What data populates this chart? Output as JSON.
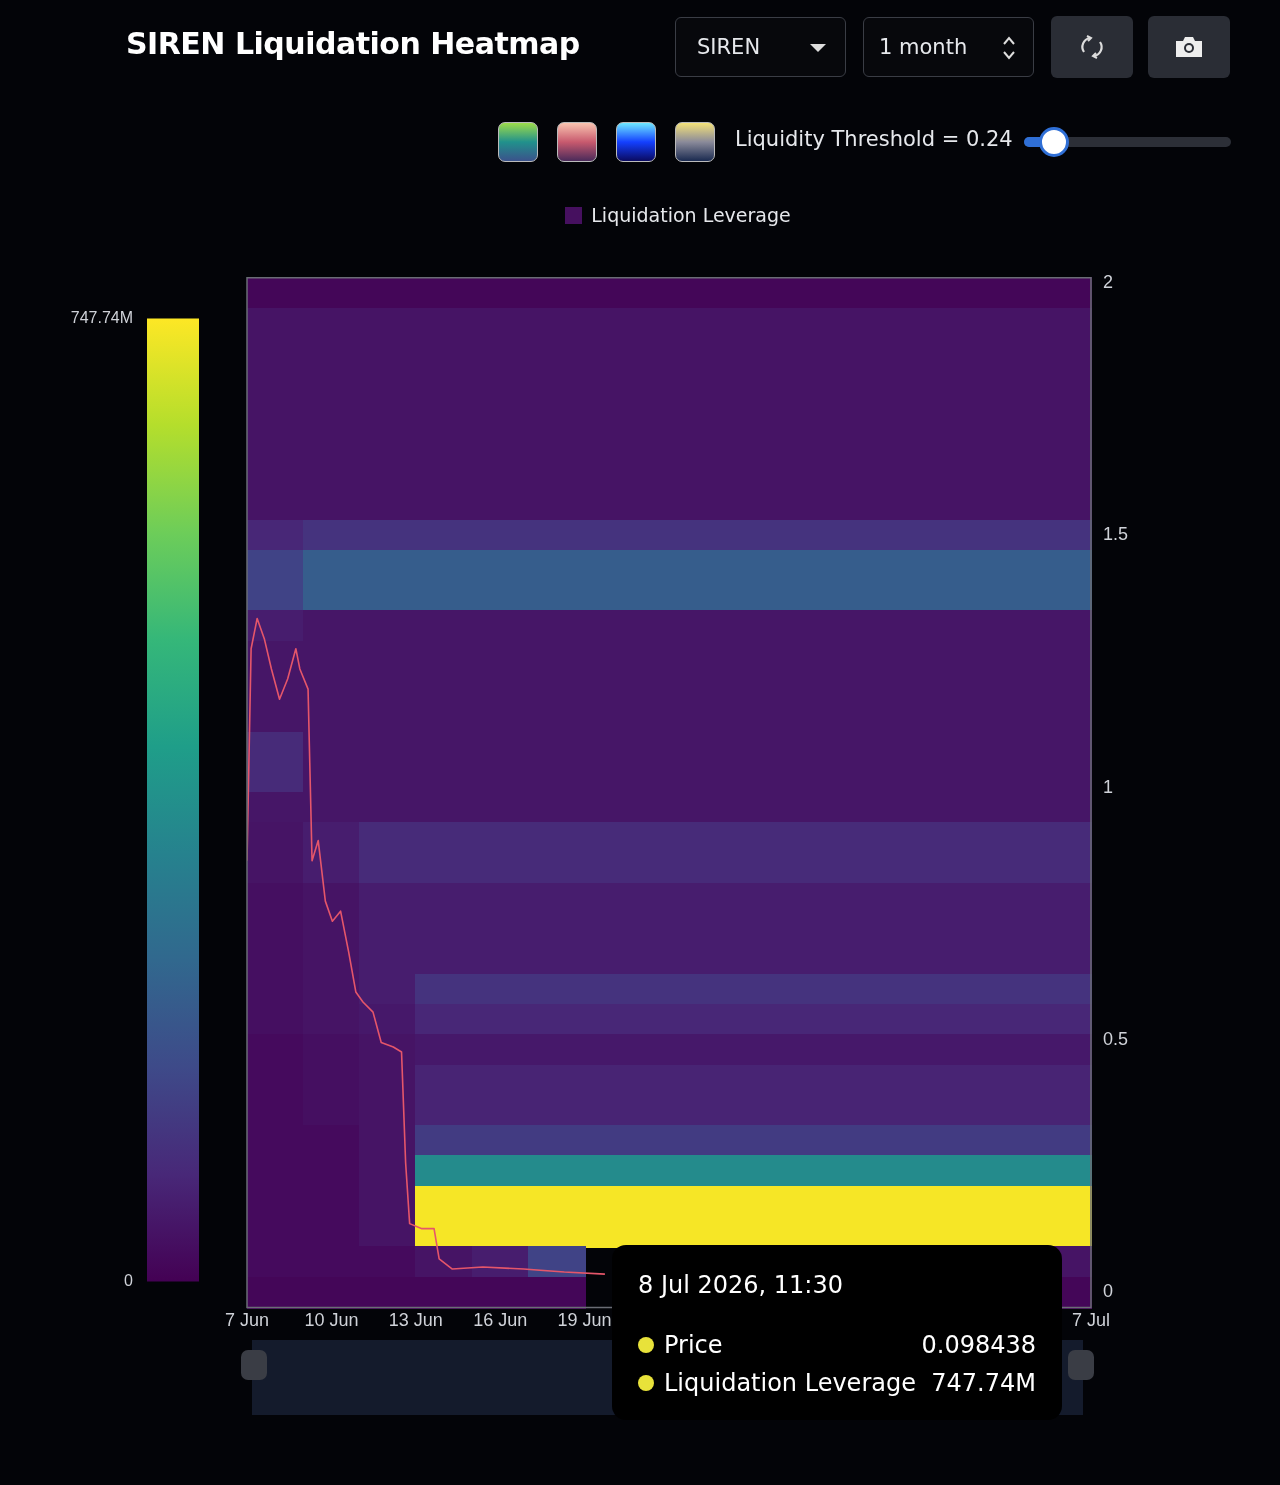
{
  "chart_data": {
    "type": "heatmap",
    "title": "SIREN Liquidation Heatmap",
    "annotations": [
      "SIREN",
      "1 month",
      "Liquidity Threshold = 0.24",
      "8 Jul 2026, 11:30",
      "Price",
      "0.098438",
      "Liquidation Leverage",
      "747.74M"
    ],
    "legend": "top",
    "xlim": [
      "2026-06-07",
      "2026-07-07"
    ],
    "xticks": [
      {
        "value": "2026-06-07",
        "label": "7 Jun"
      },
      {
        "value": "2026-06-10",
        "label": "10 Jun"
      },
      {
        "value": "2026-06-13",
        "label": "13 Jun"
      },
      {
        "value": "2026-06-16",
        "label": "16 Jun"
      },
      {
        "value": "2026-06-19",
        "label": "19 Jun"
      },
      {
        "value": "2026-07-07",
        "label": "7 Jul"
      }
    ],
    "ylim": [
      -0.03,
      2.01
    ],
    "yticks": [
      0,
      0.5,
      1,
      1.5,
      2
    ],
    "clim": [
      0,
      747.74
    ],
    "cticks": [
      0,
      {
        "value": 747.74,
        "label": "747.74M"
      }
    ],
    "series": [
      {
        "type": "heatmap",
        "name": "Liquidation Leverage",
        "color": "#46105f"
      },
      {
        "type": "line",
        "color": "#e5566a",
        "marker": "none",
        "x": [
          "2026-06-07T00:00",
          "2026-06-07T03:30",
          "2026-06-07T08:40",
          "2026-06-07T14:45",
          "2026-06-07T20:50",
          "2026-06-08T03:45",
          "2026-06-08T10:40",
          "2026-06-08T17:40",
          "2026-06-08T21:05",
          "2026-06-09T04:05",
          "2026-06-09T07:30",
          "2026-06-09T12:45",
          "2026-06-09T18:50",
          "2026-06-10T00:50",
          "2026-06-10T07:50",
          "2026-06-10T14:40",
          "2026-06-10T20:50",
          "2026-06-11T02:55",
          "2026-06-11T11:30",
          "2026-06-11T18:30",
          "2026-06-12T04:50",
          "2026-06-12T11:50",
          "2026-06-12T15:20",
          "2026-06-12T18:45",
          "2026-06-13T05:15",
          "2026-06-13T15:35",
          "2026-06-13T19:55",
          "2026-06-14T07:10",
          "2026-06-15T09:10",
          "2026-06-16T20:00",
          "2026-06-18T06:40",
          "2026-06-19T17:20"
        ],
        "values": [
          0.855,
          1.275,
          1.335,
          1.295,
          1.235,
          1.175,
          1.215,
          1.275,
          1.235,
          1.195,
          0.855,
          0.895,
          0.775,
          0.735,
          0.755,
          0.675,
          0.595,
          0.575,
          0.555,
          0.495,
          0.486,
          0.476,
          0.256,
          0.136,
          0.126,
          0.126,
          0.066,
          0.046,
          0.05,
          0.046,
          0.04,
          0.036
        ]
      }
    ],
    "cells": [
      [
        10,
        10,
        10,
        10,
        10,
        10,
        10,
        10,
        10,
        10,
        10,
        10,
        10,
        10,
        10
      ],
      [
        40,
        40,
        40,
        40,
        40,
        40,
        40,
        40,
        40,
        40,
        40,
        40,
        40,
        40,
        40
      ],
      [
        40,
        40,
        40,
        40,
        40,
        40,
        40,
        40,
        40,
        40,
        40,
        40,
        40,
        40,
        40
      ],
      [
        40,
        40,
        40,
        40,
        40,
        40,
        40,
        40,
        40,
        40,
        40,
        40,
        40,
        40,
        40
      ],
      [
        40,
        40,
        40,
        40,
        40,
        40,
        40,
        40,
        40,
        40,
        40,
        40,
        40,
        40,
        40
      ],
      [
        40,
        40,
        40,
        40,
        40,
        40,
        40,
        40,
        40,
        40,
        40,
        40,
        40,
        40,
        40
      ],
      [
        40,
        40,
        40,
        40,
        40,
        40,
        40,
        40,
        40,
        40,
        40,
        40,
        40,
        40,
        40
      ],
      [
        40,
        40,
        40,
        40,
        40,
        40,
        40,
        40,
        40,
        40,
        40,
        40,
        40,
        40,
        40
      ],
      [
        80,
        110,
        110,
        110,
        110,
        110,
        110,
        110,
        110,
        110,
        110,
        110,
        110,
        110,
        110
      ],
      [
        150,
        220,
        220,
        220,
        220,
        220,
        220,
        220,
        220,
        220,
        220,
        220,
        220,
        220,
        220
      ],
      [
        150,
        220,
        220,
        220,
        220,
        220,
        220,
        220,
        220,
        220,
        220,
        220,
        220,
        220,
        220
      ],
      [
        60,
        45,
        45,
        45,
        45,
        45,
        45,
        45,
        45,
        45,
        45,
        45,
        45,
        45,
        45
      ],
      [
        45,
        45,
        45,
        45,
        45,
        45,
        45,
        45,
        45,
        45,
        45,
        45,
        45,
        45,
        45
      ],
      [
        45,
        45,
        45,
        45,
        45,
        45,
        45,
        45,
        45,
        45,
        45,
        45,
        45,
        45,
        45
      ],
      [
        45,
        45,
        45,
        45,
        45,
        45,
        45,
        45,
        45,
        45,
        45,
        45,
        45,
        45,
        45
      ],
      [
        90,
        45,
        45,
        45,
        45,
        45,
        45,
        45,
        45,
        45,
        45,
        45,
        45,
        45,
        45
      ],
      [
        90,
        45,
        45,
        45,
        45,
        45,
        45,
        45,
        45,
        45,
        45,
        45,
        45,
        45,
        45
      ],
      [
        45,
        45,
        45,
        45,
        45,
        45,
        45,
        45,
        45,
        45,
        45,
        45,
        45,
        45,
        45
      ],
      [
        40,
        60,
        90,
        90,
        90,
        90,
        90,
        90,
        90,
        90,
        90,
        90,
        90,
        90,
        90
      ],
      [
        40,
        60,
        90,
        90,
        90,
        90,
        90,
        90,
        90,
        90,
        90,
        90,
        90,
        90,
        90
      ],
      [
        30,
        40,
        60,
        60,
        60,
        60,
        60,
        60,
        60,
        60,
        60,
        60,
        60,
        60,
        60
      ],
      [
        30,
        40,
        60,
        60,
        60,
        60,
        60,
        60,
        60,
        60,
        60,
        60,
        60,
        60,
        60
      ],
      [
        30,
        40,
        60,
        60,
        60,
        60,
        60,
        60,
        60,
        60,
        60,
        60,
        60,
        60,
        60
      ],
      [
        30,
        40,
        60,
        110,
        110,
        110,
        110,
        110,
        110,
        110,
        110,
        110,
        110,
        110,
        110
      ],
      [
        30,
        40,
        50,
        80,
        80,
        80,
        80,
        80,
        80,
        80,
        80,
        80,
        80,
        80,
        80
      ],
      [
        20,
        30,
        40,
        50,
        50,
        50,
        50,
        50,
        50,
        50,
        50,
        50,
        50,
        50,
        50
      ],
      [
        20,
        30,
        40,
        75,
        75,
        75,
        75,
        75,
        75,
        75,
        75,
        75,
        75,
        75,
        75
      ],
      [
        20,
        30,
        40,
        75,
        75,
        75,
        75,
        75,
        75,
        75,
        75,
        75,
        75,
        75,
        75
      ],
      [
        20,
        20,
        40,
        130,
        130,
        130,
        130,
        130,
        130,
        130,
        130,
        130,
        130,
        130,
        130
      ],
      [
        20,
        20,
        40,
        360,
        360,
        360,
        360,
        360,
        360,
        360,
        360,
        360,
        360,
        360,
        360
      ],
      [
        20,
        20,
        40,
        740,
        740,
        740,
        740,
        740,
        740,
        740,
        740,
        740,
        740,
        740,
        740
      ],
      [
        20,
        20,
        40,
        740,
        740,
        740,
        740,
        740,
        740,
        740,
        740,
        740,
        740,
        740,
        740
      ],
      [
        20,
        20,
        20,
        40,
        60,
        150,
        null,
        null,
        null,
        null,
        null,
        null,
        null,
        null,
        40
      ],
      [
        10,
        10,
        10,
        10,
        10,
        10,
        null,
        null,
        null,
        null,
        null,
        null,
        null,
        null,
        10
      ]
    ]
  }
}
